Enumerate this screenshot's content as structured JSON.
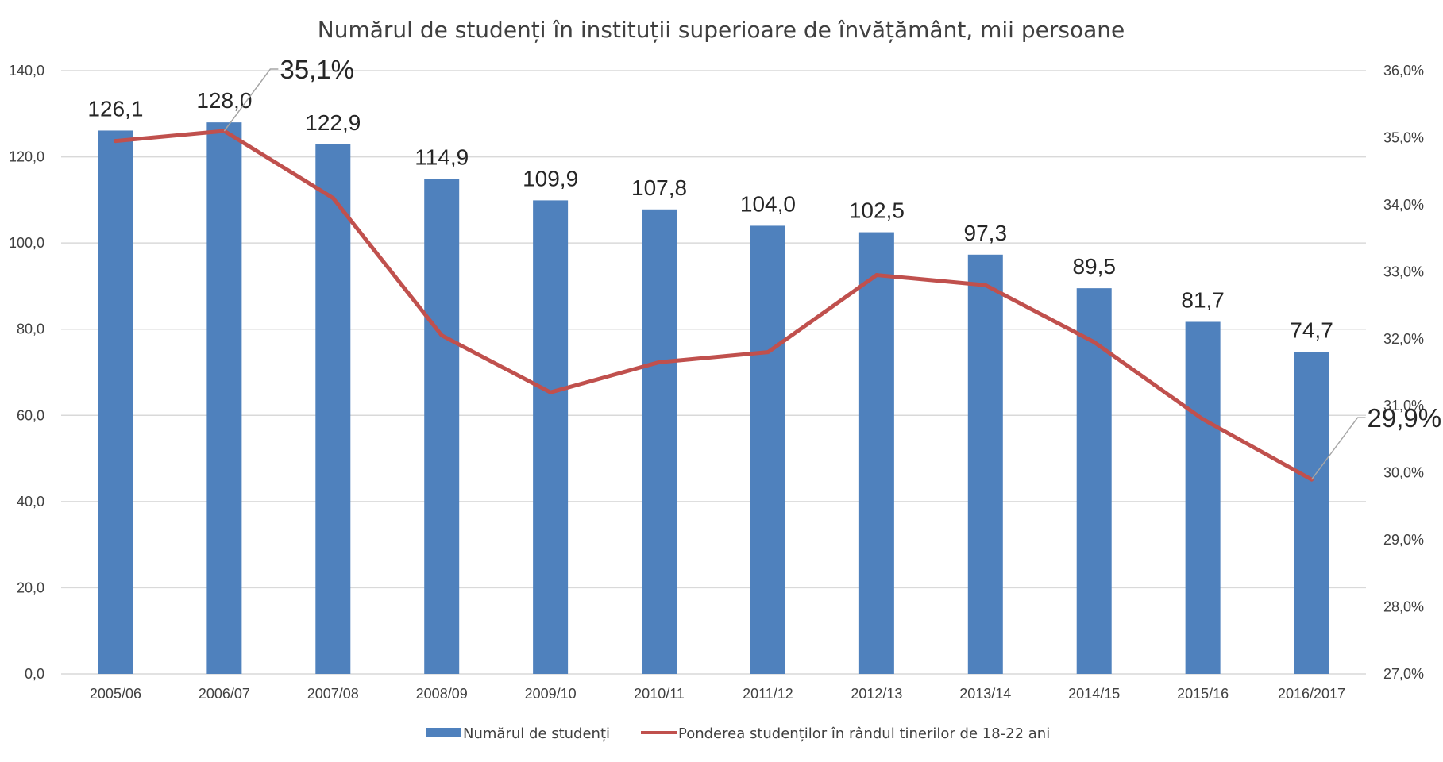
{
  "chart_data": {
    "type": "bar",
    "title": "Numărul de studenți în instituții superioare de învățământ, mii persoane",
    "categories": [
      "2005/06",
      "2006/07",
      "2007/08",
      "2008/09",
      "2009/10",
      "2010/11",
      "2011/12",
      "2012/13",
      "2013/14",
      "2014/15",
      "2015/16",
      "2016/2017"
    ],
    "series": [
      {
        "name": "Numărul de studenți",
        "type": "bar",
        "axis": "left",
        "color": "#4F81BD",
        "values": [
          126.1,
          128.0,
          122.9,
          114.9,
          109.9,
          107.8,
          104.0,
          102.5,
          97.3,
          89.5,
          81.7,
          74.7
        ],
        "labels": [
          "126,1",
          "128,0",
          "122,9",
          "114,9",
          "109,9",
          "107,8",
          "104,0",
          "102,5",
          "97,3",
          "89,5",
          "81,7",
          "74,7"
        ]
      },
      {
        "name": "Ponderea studenților în rândul tinerilor de 18-22 ani",
        "type": "line",
        "axis": "right",
        "color": "#C0504D",
        "values": [
          34.95,
          35.1,
          34.1,
          32.05,
          31.2,
          31.65,
          31.8,
          32.95,
          32.8,
          31.95,
          30.8,
          29.9
        ],
        "point_labels": [
          {
            "index": 1,
            "text": "35,1%"
          },
          {
            "index": 11,
            "text": "29,9%"
          }
        ]
      }
    ],
    "y_left": {
      "ylim": [
        0,
        140
      ],
      "ticks": [
        0,
        20,
        40,
        60,
        80,
        100,
        120,
        140
      ],
      "tick_labels": [
        "0,0",
        "20,0",
        "40,0",
        "60,0",
        "80,0",
        "100,0",
        "120,0",
        "140,0"
      ]
    },
    "y_right": {
      "ylim": [
        27,
        36
      ],
      "ticks": [
        27,
        28,
        29,
        30,
        31,
        32,
        33,
        34,
        35,
        36
      ],
      "tick_labels": [
        "27,0%",
        "28,0%",
        "29,0%",
        "30,0%",
        "31,0%",
        "32,0%",
        "33,0%",
        "34,0%",
        "35,0%",
        "36,0%"
      ]
    },
    "grid": true,
    "legend": "bottom"
  }
}
